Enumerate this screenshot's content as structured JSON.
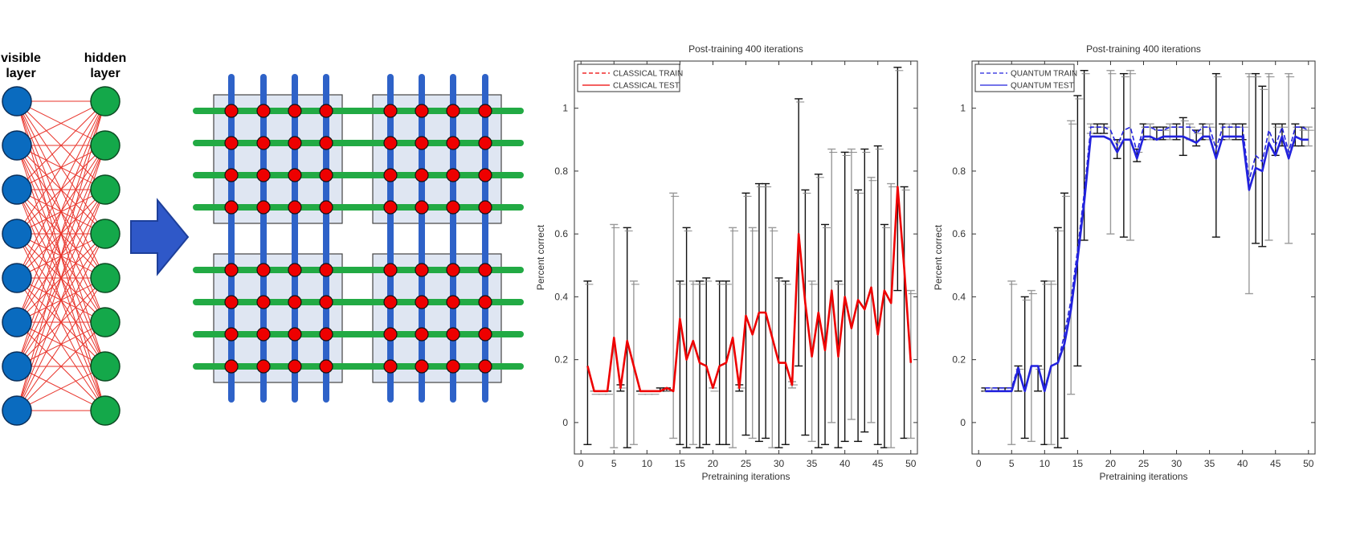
{
  "rbm": {
    "visible_label_1": "visible",
    "visible_label_2": "layer",
    "hidden_label_1": "hidden",
    "hidden_label_2": "layer",
    "visible_color": "#0a6bbf",
    "hidden_color": "#14a84a",
    "edge_color": "#e8332a"
  },
  "chimera": {
    "horizontal_color": "#22aa44",
    "vertical_color": "#2e62c8",
    "node_color": "#ee0000",
    "cell_fill": "#dfe6f2"
  },
  "arrow_color": "#2f58c8",
  "chart_data": [
    {
      "type": "line",
      "title": "Post-training 400 iterations",
      "xlabel": "Pretraining iterations",
      "ylabel": "Percent correct",
      "xlim": [
        -1,
        51
      ],
      "ylim": [
        -0.1,
        1.15
      ],
      "xticks": [
        "0",
        "5",
        "10",
        "15",
        "20",
        "25",
        "30",
        "35",
        "40",
        "45",
        "50"
      ],
      "yticks": [
        "0",
        "0.2",
        "0.4",
        "0.6",
        "0.8",
        "1"
      ],
      "legend": "top-left",
      "grid": false,
      "series": [
        {
          "name": "CLASSICAL TRAIN",
          "style": "dashed",
          "color": "#ee0000",
          "x": [
            1,
            2,
            3,
            4,
            5,
            6,
            7,
            8,
            9,
            10,
            11,
            12,
            13,
            14,
            15,
            16,
            17,
            18,
            19,
            20,
            21,
            22,
            23,
            24,
            25,
            26,
            27,
            28,
            29,
            30,
            31,
            32,
            33,
            34,
            35,
            36,
            37,
            38,
            39,
            40,
            41,
            42,
            43,
            44,
            45,
            46,
            47,
            48,
            49,
            50
          ],
          "y": [
            0.18,
            0.1,
            0.1,
            0.1,
            0.27,
            0.11,
            0.26,
            0.18,
            0.1,
            0.1,
            0.1,
            0.1,
            0.11,
            0.1,
            0.33,
            0.2,
            0.26,
            0.19,
            0.18,
            0.11,
            0.18,
            0.19,
            0.27,
            0.11,
            0.34,
            0.28,
            0.35,
            0.35,
            0.27,
            0.19,
            0.19,
            0.12,
            0.6,
            0.38,
            0.21,
            0.35,
            0.23,
            0.42,
            0.21,
            0.4,
            0.3,
            0.39,
            0.36,
            0.43,
            0.28,
            0.42,
            0.38,
            0.75,
            0.49,
            0.19
          ]
        },
        {
          "name": "CLASSICAL TEST",
          "style": "solid",
          "color": "#ee0000",
          "x": [
            1,
            2,
            3,
            4,
            5,
            6,
            7,
            8,
            9,
            10,
            11,
            12,
            13,
            14,
            15,
            16,
            17,
            18,
            19,
            20,
            21,
            22,
            23,
            24,
            25,
            26,
            27,
            28,
            29,
            30,
            31,
            32,
            33,
            34,
            35,
            36,
            37,
            38,
            39,
            40,
            41,
            42,
            43,
            44,
            45,
            46,
            47,
            48,
            49,
            50
          ],
          "y": [
            0.18,
            0.1,
            0.1,
            0.1,
            0.27,
            0.11,
            0.26,
            0.18,
            0.1,
            0.1,
            0.1,
            0.1,
            0.11,
            0.1,
            0.33,
            0.2,
            0.26,
            0.19,
            0.18,
            0.11,
            0.18,
            0.19,
            0.27,
            0.11,
            0.34,
            0.28,
            0.35,
            0.35,
            0.27,
            0.19,
            0.19,
            0.12,
            0.6,
            0.38,
            0.21,
            0.35,
            0.23,
            0.42,
            0.21,
            0.4,
            0.3,
            0.39,
            0.36,
            0.43,
            0.28,
            0.42,
            0.38,
            0.75,
            0.49,
            0.19
          ]
        }
      ],
      "error_bars": [
        {
          "x": 1,
          "lo": -0.07,
          "hi": 0.45
        },
        {
          "x": 2,
          "lo": 0.1,
          "hi": 0.1
        },
        {
          "x": 3,
          "lo": 0.1,
          "hi": 0.1
        },
        {
          "x": 4,
          "lo": 0.1,
          "hi": 0.1
        },
        {
          "x": 5,
          "lo": -0.08,
          "hi": 0.63
        },
        {
          "x": 6,
          "lo": 0.1,
          "hi": 0.12
        },
        {
          "x": 7,
          "lo": -0.08,
          "hi": 0.62
        },
        {
          "x": 8,
          "lo": -0.07,
          "hi": 0.45
        },
        {
          "x": 9,
          "lo": 0.1,
          "hi": 0.1
        },
        {
          "x": 10,
          "lo": 0.1,
          "hi": 0.1
        },
        {
          "x": 11,
          "lo": 0.1,
          "hi": 0.1
        },
        {
          "x": 12,
          "lo": 0.1,
          "hi": 0.11
        },
        {
          "x": 13,
          "lo": 0.1,
          "hi": 0.11
        },
        {
          "x": 14,
          "lo": -0.05,
          "hi": 0.73
        },
        {
          "x": 15,
          "lo": -0.07,
          "hi": 0.45
        },
        {
          "x": 16,
          "lo": -0.08,
          "hi": 0.62
        },
        {
          "x": 17,
          "lo": -0.07,
          "hi": 0.45
        },
        {
          "x": 18,
          "lo": -0.08,
          "hi": 0.45
        },
        {
          "x": 19,
          "lo": -0.07,
          "hi": 0.46
        },
        {
          "x": 20,
          "lo": 0.11,
          "hi": 0.11
        },
        {
          "x": 21,
          "lo": -0.07,
          "hi": 0.45
        },
        {
          "x": 22,
          "lo": -0.07,
          "hi": 0.45
        },
        {
          "x": 23,
          "lo": -0.08,
          "hi": 0.62
        },
        {
          "x": 24,
          "lo": 0.1,
          "hi": 0.12
        },
        {
          "x": 25,
          "lo": -0.04,
          "hi": 0.73
        },
        {
          "x": 26,
          "lo": -0.05,
          "hi": 0.62
        },
        {
          "x": 27,
          "lo": -0.06,
          "hi": 0.76
        },
        {
          "x": 28,
          "lo": -0.05,
          "hi": 0.76
        },
        {
          "x": 29,
          "lo": -0.08,
          "hi": 0.62
        },
        {
          "x": 30,
          "lo": -0.08,
          "hi": 0.46
        },
        {
          "x": 31,
          "lo": -0.07,
          "hi": 0.45
        },
        {
          "x": 32,
          "lo": 0.11,
          "hi": 0.13
        },
        {
          "x": 33,
          "lo": 0.18,
          "hi": 1.03
        },
        {
          "x": 34,
          "lo": -0.04,
          "hi": 0.74
        },
        {
          "x": 35,
          "lo": -0.06,
          "hi": 0.45
        },
        {
          "x": 36,
          "lo": -0.08,
          "hi": 0.79
        },
        {
          "x": 37,
          "lo": -0.07,
          "hi": 0.63
        },
        {
          "x": 38,
          "lo": 0.0,
          "hi": 0.87
        },
        {
          "x": 39,
          "lo": -0.08,
          "hi": 0.45
        },
        {
          "x": 40,
          "lo": -0.06,
          "hi": 0.86
        },
        {
          "x": 41,
          "lo": 0.01,
          "hi": 0.87
        },
        {
          "x": 42,
          "lo": -0.06,
          "hi": 0.74
        },
        {
          "x": 43,
          "lo": -0.03,
          "hi": 0.87
        },
        {
          "x": 44,
          "lo": 0.0,
          "hi": 0.78
        },
        {
          "x": 45,
          "lo": -0.07,
          "hi": 0.88
        },
        {
          "x": 46,
          "lo": -0.08,
          "hi": 0.63
        },
        {
          "x": 47,
          "lo": -0.08,
          "hi": 0.76
        },
        {
          "x": 48,
          "lo": 0.42,
          "hi": 1.13
        },
        {
          "x": 49,
          "lo": -0.05,
          "hi": 0.75
        },
        {
          "x": 50,
          "lo": -0.05,
          "hi": 0.42
        }
      ]
    },
    {
      "type": "line",
      "title": "Post-training 400 iterations",
      "xlabel": "Pretraining iterations",
      "ylabel": "Percent correct",
      "xlim": [
        -1,
        51
      ],
      "ylim": [
        -0.1,
        1.15
      ],
      "xticks": [
        "0",
        "5",
        "10",
        "15",
        "20",
        "25",
        "30",
        "35",
        "40",
        "45",
        "50"
      ],
      "yticks": [
        "0",
        "0.2",
        "0.4",
        "0.6",
        "0.8",
        "1"
      ],
      "legend": "top-left",
      "grid": false,
      "series": [
        {
          "name": "QUANTUM TRAIN",
          "style": "dashed",
          "color": "#2222dd",
          "x": [
            1,
            2,
            3,
            4,
            5,
            6,
            7,
            8,
            9,
            10,
            11,
            12,
            13,
            14,
            15,
            16,
            17,
            18,
            19,
            20,
            21,
            22,
            23,
            24,
            25,
            26,
            27,
            28,
            29,
            30,
            31,
            32,
            33,
            34,
            35,
            36,
            37,
            38,
            39,
            40,
            41,
            42,
            43,
            44,
            45,
            46,
            47,
            48,
            49,
            50
          ],
          "y": [
            0.11,
            0.11,
            0.11,
            0.11,
            0.11,
            0.18,
            0.1,
            0.18,
            0.18,
            0.11,
            0.18,
            0.19,
            0.28,
            0.39,
            0.55,
            0.73,
            0.94,
            0.94,
            0.94,
            0.93,
            0.88,
            0.93,
            0.94,
            0.86,
            0.94,
            0.94,
            0.93,
            0.93,
            0.94,
            0.94,
            0.94,
            0.94,
            0.92,
            0.94,
            0.94,
            0.87,
            0.94,
            0.94,
            0.94,
            0.94,
            0.77,
            0.85,
            0.83,
            0.93,
            0.88,
            0.94,
            0.86,
            0.94,
            0.94,
            0.93
          ]
        },
        {
          "name": "QUANTUM TEST",
          "style": "solid",
          "color": "#2222dd",
          "x": [
            1,
            2,
            3,
            4,
            5,
            6,
            7,
            8,
            9,
            10,
            11,
            12,
            13,
            14,
            15,
            16,
            17,
            18,
            19,
            20,
            21,
            22,
            23,
            24,
            25,
            26,
            27,
            28,
            29,
            30,
            31,
            32,
            33,
            34,
            35,
            36,
            37,
            38,
            39,
            40,
            41,
            42,
            43,
            44,
            45,
            46,
            47,
            48,
            49,
            50
          ],
          "y": [
            0.1,
            0.1,
            0.1,
            0.1,
            0.1,
            0.17,
            0.1,
            0.18,
            0.18,
            0.1,
            0.18,
            0.19,
            0.25,
            0.36,
            0.52,
            0.7,
            0.91,
            0.91,
            0.91,
            0.9,
            0.86,
            0.9,
            0.9,
            0.84,
            0.91,
            0.91,
            0.9,
            0.91,
            0.91,
            0.91,
            0.91,
            0.9,
            0.89,
            0.91,
            0.91,
            0.84,
            0.91,
            0.91,
            0.91,
            0.91,
            0.74,
            0.81,
            0.8,
            0.89,
            0.85,
            0.91,
            0.84,
            0.91,
            0.9,
            0.9
          ]
        }
      ],
      "error_bars": [
        {
          "x": 1,
          "lo": 0.1,
          "hi": 0.11
        },
        {
          "x": 2,
          "lo": 0.1,
          "hi": 0.11
        },
        {
          "x": 3,
          "lo": 0.1,
          "hi": 0.11
        },
        {
          "x": 4,
          "lo": 0.1,
          "hi": 0.11
        },
        {
          "x": 5,
          "lo": -0.07,
          "hi": 0.45
        },
        {
          "x": 6,
          "lo": 0.1,
          "hi": 0.18
        },
        {
          "x": 7,
          "lo": -0.05,
          "hi": 0.4
        },
        {
          "x": 8,
          "lo": -0.06,
          "hi": 0.42
        },
        {
          "x": 9,
          "lo": 0.1,
          "hi": 0.18
        },
        {
          "x": 10,
          "lo": -0.07,
          "hi": 0.45
        },
        {
          "x": 11,
          "lo": -0.07,
          "hi": 0.45
        },
        {
          "x": 12,
          "lo": -0.08,
          "hi": 0.62
        },
        {
          "x": 13,
          "lo": -0.05,
          "hi": 0.73
        },
        {
          "x": 14,
          "lo": 0.09,
          "hi": 0.96
        },
        {
          "x": 15,
          "lo": 0.18,
          "hi": 1.04
        },
        {
          "x": 16,
          "lo": 0.58,
          "hi": 1.12
        },
        {
          "x": 17,
          "lo": 0.92,
          "hi": 0.95
        },
        {
          "x": 18,
          "lo": 0.92,
          "hi": 0.95
        },
        {
          "x": 19,
          "lo": 0.92,
          "hi": 0.95
        },
        {
          "x": 20,
          "lo": 0.6,
          "hi": 1.12
        },
        {
          "x": 21,
          "lo": 0.84,
          "hi": 0.9
        },
        {
          "x": 22,
          "lo": 0.59,
          "hi": 1.11
        },
        {
          "x": 23,
          "lo": 0.58,
          "hi": 1.12
        },
        {
          "x": 24,
          "lo": 0.83,
          "hi": 0.87
        },
        {
          "x": 25,
          "lo": 0.9,
          "hi": 0.95
        },
        {
          "x": 26,
          "lo": 0.9,
          "hi": 0.95
        },
        {
          "x": 27,
          "lo": 0.9,
          "hi": 0.94
        },
        {
          "x": 28,
          "lo": 0.9,
          "hi": 0.94
        },
        {
          "x": 29,
          "lo": 0.9,
          "hi": 0.95
        },
        {
          "x": 30,
          "lo": 0.9,
          "hi": 0.95
        },
        {
          "x": 31,
          "lo": 0.85,
          "hi": 0.97
        },
        {
          "x": 32,
          "lo": 0.9,
          "hi": 0.95
        },
        {
          "x": 33,
          "lo": 0.88,
          "hi": 0.93
        },
        {
          "x": 34,
          "lo": 0.9,
          "hi": 0.95
        },
        {
          "x": 35,
          "lo": 0.9,
          "hi": 0.95
        },
        {
          "x": 36,
          "lo": 0.59,
          "hi": 1.11
        },
        {
          "x": 37,
          "lo": 0.9,
          "hi": 0.95
        },
        {
          "x": 38,
          "lo": 0.9,
          "hi": 0.95
        },
        {
          "x": 39,
          "lo": 0.9,
          "hi": 0.95
        },
        {
          "x": 40,
          "lo": 0.9,
          "hi": 0.95
        },
        {
          "x": 41,
          "lo": 0.41,
          "hi": 1.11
        },
        {
          "x": 42,
          "lo": 0.57,
          "hi": 1.11
        },
        {
          "x": 43,
          "lo": 0.56,
          "hi": 1.07
        },
        {
          "x": 44,
          "lo": 0.58,
          "hi": 1.11
        },
        {
          "x": 45,
          "lo": 0.85,
          "hi": 0.95
        },
        {
          "x": 46,
          "lo": 0.88,
          "hi": 0.95
        },
        {
          "x": 47,
          "lo": 0.57,
          "hi": 1.11
        },
        {
          "x": 48,
          "lo": 0.88,
          "hi": 0.95
        },
        {
          "x": 49,
          "lo": 0.88,
          "hi": 0.94
        },
        {
          "x": 50,
          "lo": 0.88,
          "hi": 0.94
        }
      ]
    }
  ]
}
